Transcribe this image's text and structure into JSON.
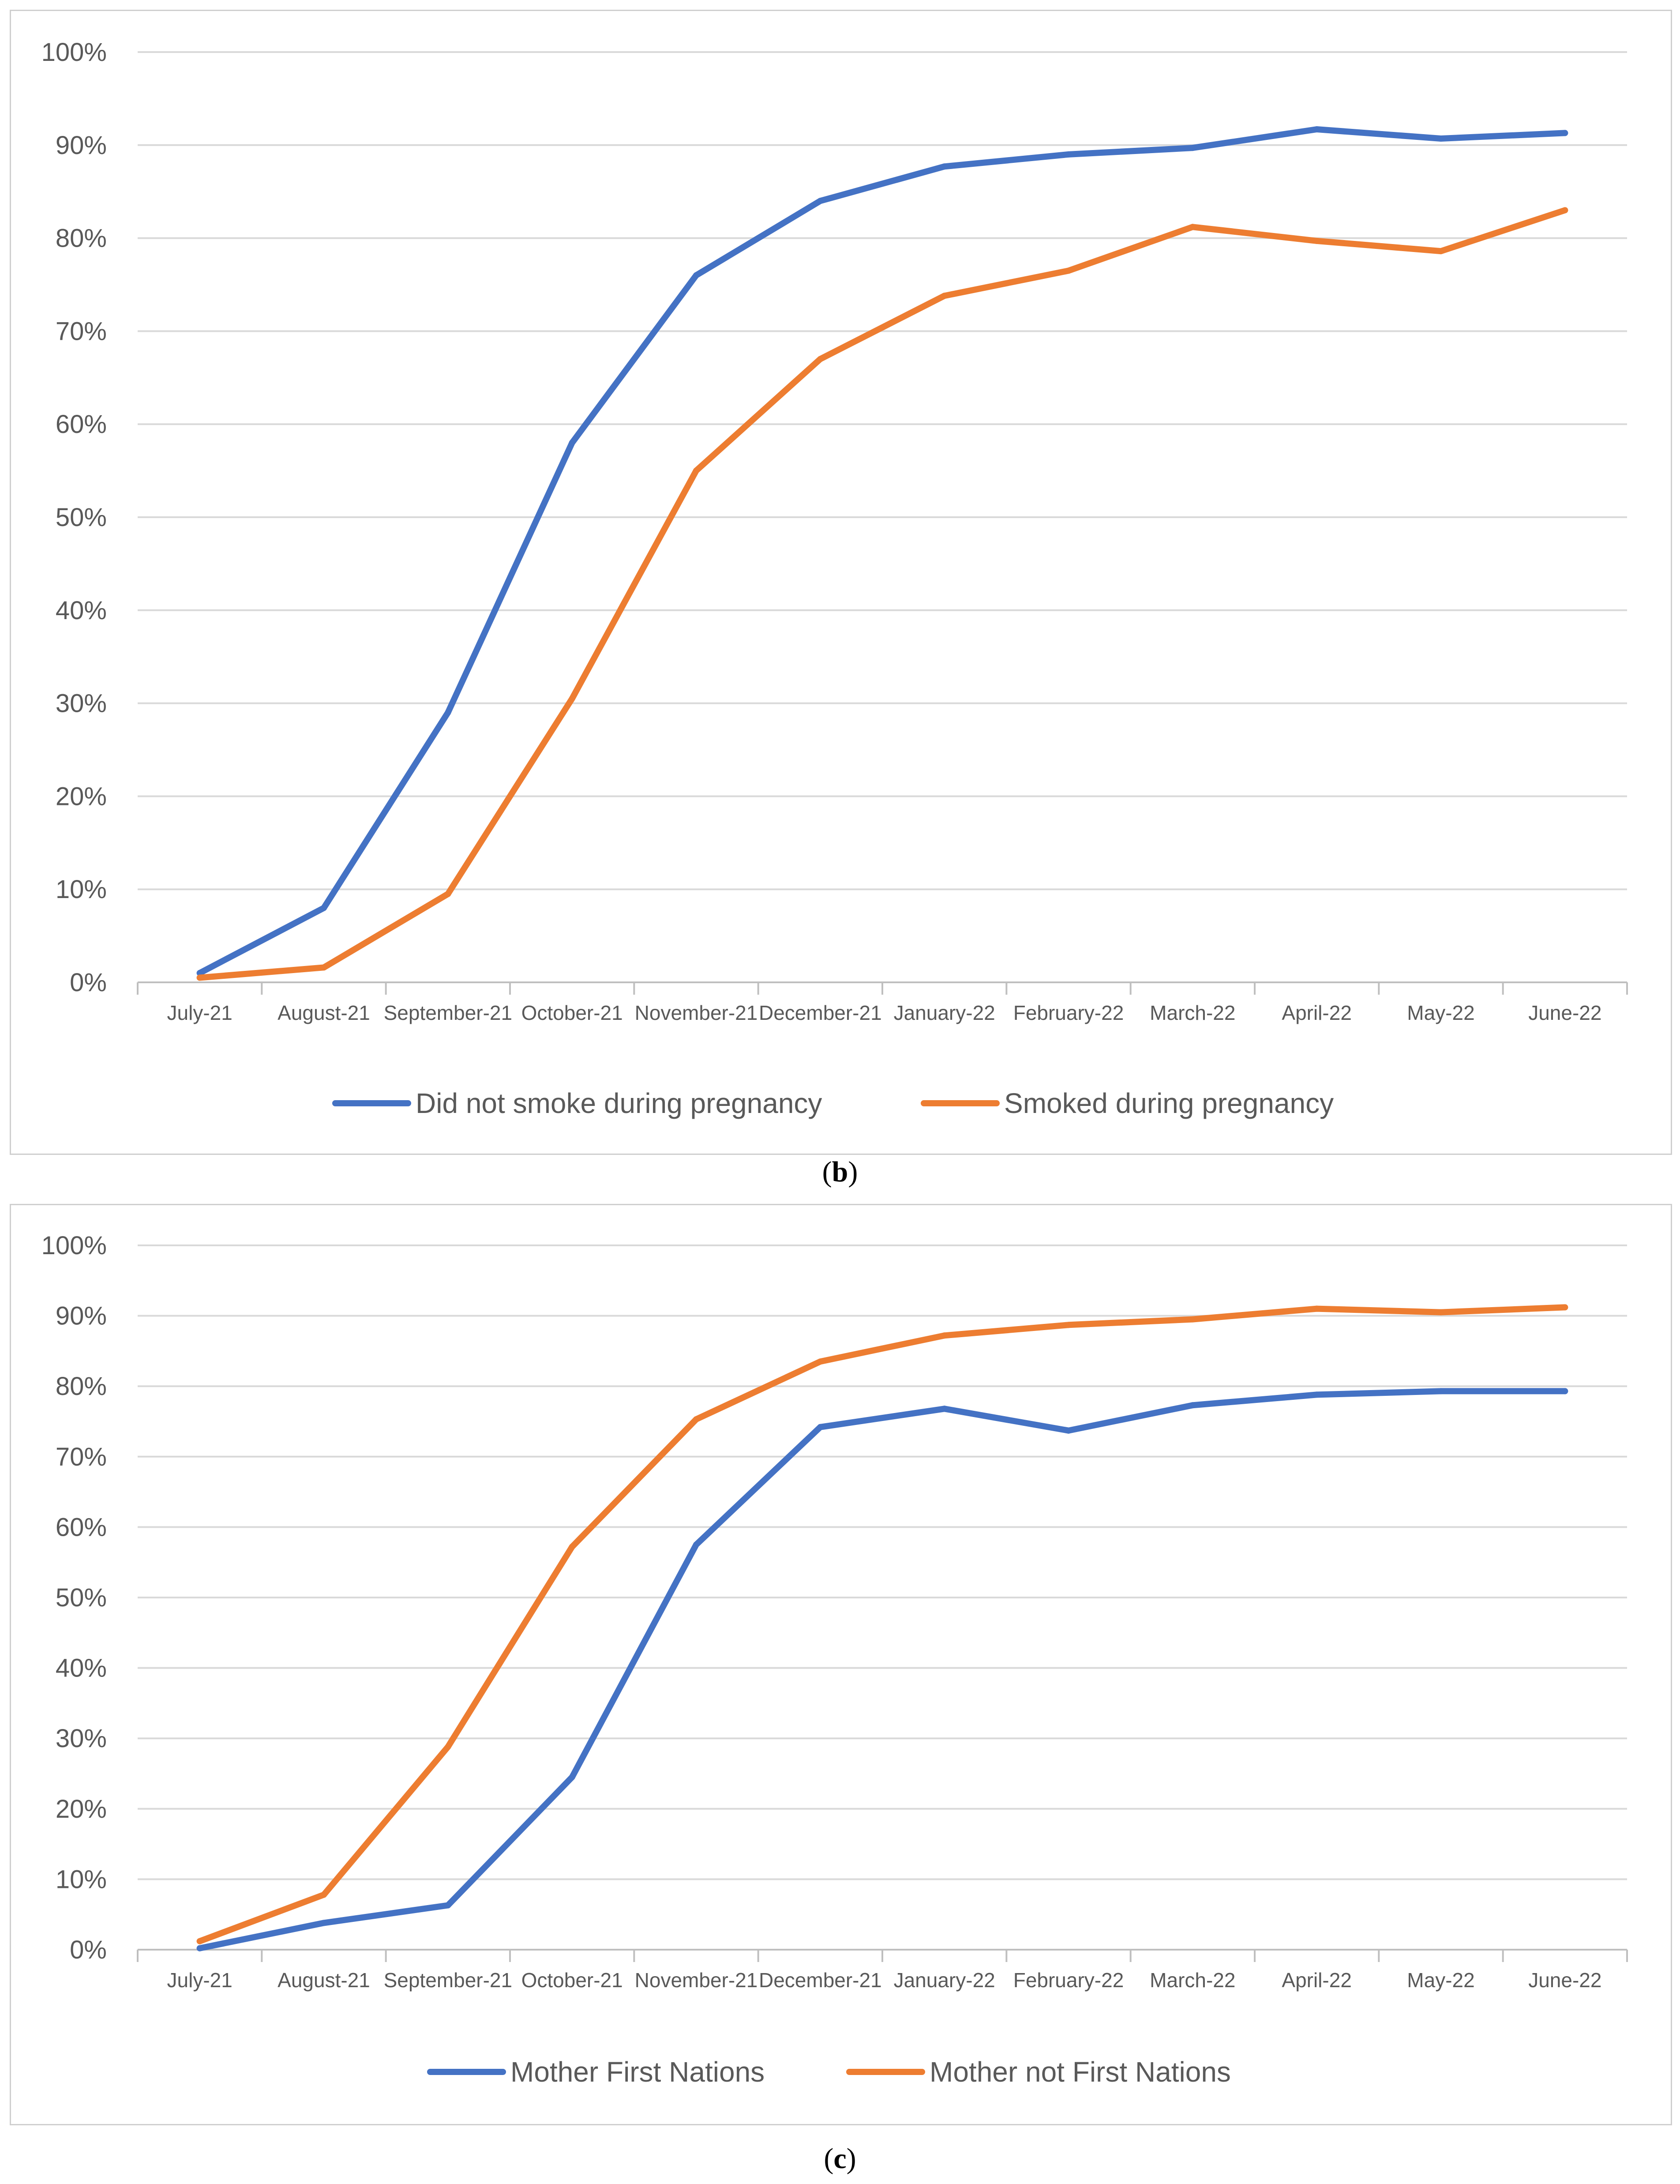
{
  "chart_data": [
    {
      "panel": "b",
      "type": "line",
      "categories": [
        "July-21",
        "August-21",
        "September-21",
        "October-21",
        "November-21",
        "December-21",
        "January-22",
        "February-22",
        "March-22",
        "April-22",
        "May-22",
        "June-22"
      ],
      "ylim": [
        0,
        100
      ],
      "yticks": [
        "0%",
        "10%",
        "20%",
        "30%",
        "40%",
        "50%",
        "60%",
        "70%",
        "80%",
        "90%",
        "100%"
      ],
      "grid": true,
      "legend_position": "bottom",
      "series": [
        {
          "name": "Did not smoke during pregnancy",
          "color": "#4472C4",
          "values": [
            1,
            8,
            29,
            58,
            76,
            84,
            87.7,
            89,
            89.7,
            91.7,
            90.7,
            91.3
          ]
        },
        {
          "name": "Smoked during pregnancy",
          "color": "#ED7D31",
          "values": [
            0.5,
            1.6,
            9.5,
            30.5,
            55,
            67,
            73.8,
            76.5,
            81.2,
            79.7,
            78.6,
            83
          ]
        }
      ]
    },
    {
      "panel": "c",
      "type": "line",
      "categories": [
        "July-21",
        "August-21",
        "September-21",
        "October-21",
        "November-21",
        "December-21",
        "January-22",
        "February-22",
        "March-22",
        "April-22",
        "May-22",
        "June-22"
      ],
      "ylim": [
        0,
        100
      ],
      "yticks": [
        "0%",
        "10%",
        "20%",
        "30%",
        "40%",
        "50%",
        "60%",
        "70%",
        "80%",
        "90%",
        "100%"
      ],
      "grid": true,
      "legend_position": "bottom",
      "series": [
        {
          "name": "Mother First Nations",
          "color": "#4472C4",
          "values": [
            0.2,
            3.8,
            6.3,
            24.5,
            57.5,
            74.2,
            76.8,
            73.7,
            77.3,
            78.8,
            79.3,
            79.3
          ]
        },
        {
          "name": "Mother not First Nations",
          "color": "#ED7D31",
          "values": [
            1.2,
            7.8,
            28.8,
            57.2,
            75.3,
            83.5,
            87.2,
            88.7,
            89.5,
            91,
            90.5,
            91.2
          ]
        }
      ]
    }
  ],
  "labels": {
    "b": {
      "letter": "b"
    },
    "c": {
      "letter": "c"
    }
  }
}
